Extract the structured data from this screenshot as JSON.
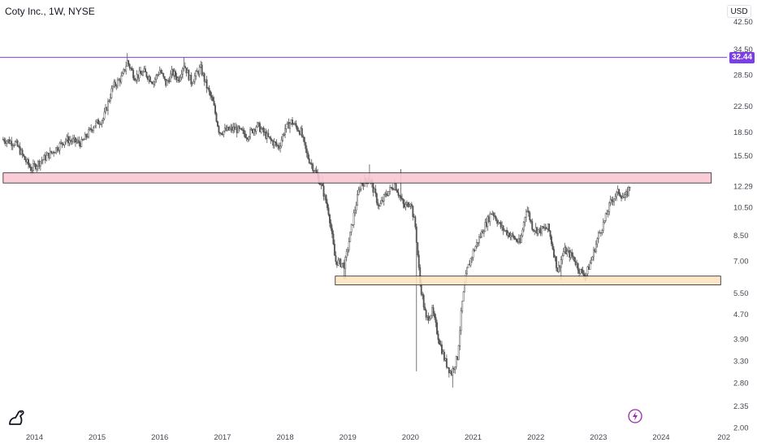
{
  "header": {
    "symbol_line": "Coty Inc., 1W, NYSE",
    "currency": "USD"
  },
  "colors": {
    "candle": "#555555",
    "hline": "#7b3fe4",
    "resistance_fill": "#f8c6d4",
    "support_fill": "#fce4bf",
    "zone_border": "#222222",
    "price_tag": "#7b3fe4",
    "axis_text": "#434651"
  },
  "icons": {
    "logo": "tradingview-logo-icon",
    "flash": "lightning-icon"
  },
  "chart_data": {
    "type": "candlestick",
    "title": "Coty Inc., 1W, NYSE",
    "x_tick_labels": [
      "2014",
      "2015",
      "2016",
      "2017",
      "2018",
      "2019",
      "2020",
      "2021",
      "2022",
      "2023",
      "2024",
      "202"
    ],
    "y_tick_labels": [
      "42.50",
      "34.50",
      "28.50",
      "22.50",
      "18.50",
      "15.50",
      "12.29",
      "10.50",
      "8.50",
      "7.00",
      "5.50",
      "4.70",
      "3.90",
      "3.30",
      "2.80",
      "2.35",
      "2.00"
    ],
    "y_ticks": [
      42.5,
      34.5,
      28.5,
      22.5,
      18.5,
      15.5,
      12.29,
      10.5,
      8.5,
      7.0,
      5.5,
      4.7,
      3.9,
      3.3,
      2.8,
      2.35,
      2.0
    ],
    "y_scale": "log",
    "yrange": [
      1.95,
      50
    ],
    "xrange": [
      2013.45,
      2025.05
    ],
    "last_price": "32.44",
    "horizontal_line": {
      "price": 32.44
    },
    "zones": [
      {
        "name": "resistance",
        "from": 2013.5,
        "to": 2024.8,
        "low": 12.6,
        "high": 13.6
      },
      {
        "name": "support",
        "from": 2018.8,
        "to": 2024.95,
        "low": 5.85,
        "high": 6.25
      }
    ],
    "path": [
      [
        2013.5,
        17.5
      ],
      [
        2013.7,
        17.0
      ],
      [
        2013.85,
        15.0
      ],
      [
        2013.95,
        14.0
      ],
      [
        2014.05,
        14.6
      ],
      [
        2014.3,
        16.0
      ],
      [
        2014.5,
        17.5
      ],
      [
        2014.75,
        17.0
      ],
      [
        2014.95,
        19.5
      ],
      [
        2015.1,
        20.5
      ],
      [
        2015.25,
        26.0
      ],
      [
        2015.4,
        28.0
      ],
      [
        2015.48,
        31.5
      ],
      [
        2015.6,
        28.0
      ],
      [
        2015.75,
        29.0
      ],
      [
        2015.9,
        27.0
      ],
      [
        2016.0,
        29.5
      ],
      [
        2016.1,
        26.5
      ],
      [
        2016.2,
        29.0
      ],
      [
        2016.3,
        27.5
      ],
      [
        2016.38,
        31.0
      ],
      [
        2016.5,
        27.0
      ],
      [
        2016.65,
        30.0
      ],
      [
        2016.75,
        26.0
      ],
      [
        2016.85,
        23.0
      ],
      [
        2016.95,
        18.5
      ],
      [
        2017.2,
        19.0
      ],
      [
        2017.4,
        18.0
      ],
      [
        2017.55,
        19.5
      ],
      [
        2017.75,
        17.5
      ],
      [
        2017.9,
        16.5
      ],
      [
        2018.0,
        19.0
      ],
      [
        2018.1,
        20.0
      ],
      [
        2018.25,
        18.5
      ],
      [
        2018.35,
        15.5
      ],
      [
        2018.5,
        13.5
      ],
      [
        2018.6,
        12.0
      ],
      [
        2018.7,
        10.0
      ],
      [
        2018.8,
        7.0
      ],
      [
        2018.95,
        6.8
      ],
      [
        2019.1,
        10.0
      ],
      [
        2019.2,
        12.5
      ],
      [
        2019.35,
        13.0
      ],
      [
        2019.5,
        10.5
      ],
      [
        2019.6,
        11.5
      ],
      [
        2019.75,
        12.5
      ],
      [
        2019.9,
        10.5
      ],
      [
        2020.0,
        11.0
      ],
      [
        2020.08,
        9.0
      ],
      [
        2020.15,
        6.0
      ],
      [
        2020.25,
        4.5
      ],
      [
        2020.35,
        4.8
      ],
      [
        2020.45,
        3.9
      ],
      [
        2020.55,
        3.3
      ],
      [
        2020.65,
        3.0
      ],
      [
        2020.75,
        3.4
      ],
      [
        2020.82,
        5.0
      ],
      [
        2020.9,
        6.5
      ],
      [
        2021.0,
        7.5
      ],
      [
        2021.15,
        8.8
      ],
      [
        2021.3,
        10.2
      ],
      [
        2021.45,
        9.0
      ],
      [
        2021.6,
        8.5
      ],
      [
        2021.75,
        8.0
      ],
      [
        2021.85,
        10.5
      ],
      [
        2021.95,
        9.0
      ],
      [
        2022.05,
        8.8
      ],
      [
        2022.2,
        9.0
      ],
      [
        2022.35,
        6.5
      ],
      [
        2022.45,
        7.6
      ],
      [
        2022.6,
        7.2
      ],
      [
        2022.7,
        6.5
      ],
      [
        2022.8,
        6.3
      ],
      [
        2022.9,
        7.2
      ],
      [
        2023.0,
        8.5
      ],
      [
        2023.1,
        9.5
      ],
      [
        2023.2,
        11.0
      ],
      [
        2023.32,
        11.8
      ],
      [
        2023.42,
        11.2
      ],
      [
        2023.5,
        12.3
      ]
    ],
    "extremes": [
      [
        2013.95,
        13.4
      ],
      [
        2015.48,
        33.5
      ],
      [
        2016.38,
        32.5
      ],
      [
        2018.6,
        13.3
      ],
      [
        2018.95,
        6.1
      ],
      [
        2019.35,
        14.5
      ],
      [
        2019.85,
        14.0
      ],
      [
        2020.1,
        3.05
      ],
      [
        2020.68,
        2.7
      ],
      [
        2022.4,
        6.05
      ],
      [
        2022.8,
        6.15
      ]
    ]
  }
}
